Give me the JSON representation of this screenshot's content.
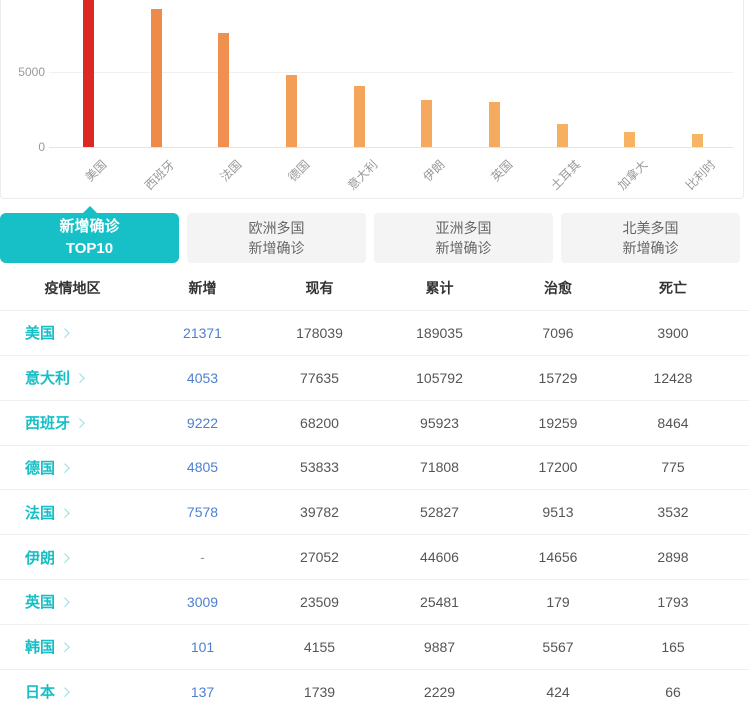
{
  "chart_data": {
    "type": "bar",
    "title": "",
    "xlabel": "",
    "ylabel": "",
    "categories": [
      "美国",
      "西班牙",
      "法国",
      "德国",
      "意大利",
      "伊朗",
      "英国",
      "土耳其",
      "加拿大",
      "比利时"
    ],
    "ids": [
      "usa",
      "spain",
      "france",
      "germany",
      "italy",
      "iran",
      "uk",
      "turkey",
      "canada",
      "belgium"
    ],
    "values": [
      21371,
      9222,
      7578,
      4805,
      4053,
      3100,
      3009,
      1550,
      1000,
      870
    ],
    "bar_colors": [
      "#dc2923",
      "#ee8a4a",
      "#ef9050",
      "#f29e57",
      "#f3a55b",
      "#f4a95e",
      "#f4ab5f",
      "#f5b062",
      "#f6b364",
      "#f6b465"
    ],
    "ytick_labels": [
      "5000",
      "0"
    ],
    "ytick_values": [
      5000,
      0
    ],
    "visible_ylim": [
      0,
      9800
    ],
    "grid": true,
    "legend_position": "none",
    "note": "tallest bar (美国) is clipped by the top edge of the viewport"
  },
  "tabs": [
    {
      "id": "top10",
      "label": "新增确诊\nTOP10",
      "active": true
    },
    {
      "id": "europe",
      "label": "欧洲多国\n新增确诊",
      "active": false
    },
    {
      "id": "asia",
      "label": "亚洲多国\n新增确诊",
      "active": false
    },
    {
      "id": "north-america",
      "label": "北美多国\n新增确诊",
      "active": false
    }
  ],
  "table": {
    "headers": [
      "疫情地区",
      "新增",
      "现有",
      "累计",
      "治愈",
      "死亡"
    ],
    "rows": [
      {
        "id": "usa",
        "region": "美国",
        "new": "21371",
        "current": "178039",
        "total": "189035",
        "cured": "7096",
        "dead": "3900"
      },
      {
        "id": "italy",
        "region": "意大利",
        "new": "4053",
        "current": "77635",
        "total": "105792",
        "cured": "15729",
        "dead": "12428"
      },
      {
        "id": "spain",
        "region": "西班牙",
        "new": "9222",
        "current": "68200",
        "total": "95923",
        "cured": "19259",
        "dead": "8464"
      },
      {
        "id": "germany",
        "region": "德国",
        "new": "4805",
        "current": "53833",
        "total": "71808",
        "cured": "17200",
        "dead": "775"
      },
      {
        "id": "france",
        "region": "法国",
        "new": "7578",
        "current": "39782",
        "total": "52827",
        "cured": "9513",
        "dead": "3532"
      },
      {
        "id": "iran",
        "region": "伊朗",
        "new": "-",
        "current": "27052",
        "total": "44606",
        "cured": "14656",
        "dead": "2898"
      },
      {
        "id": "uk",
        "region": "英国",
        "new": "3009",
        "current": "23509",
        "total": "25481",
        "cured": "179",
        "dead": "1793"
      },
      {
        "id": "south-korea",
        "region": "韩国",
        "new": "101",
        "current": "4155",
        "total": "9887",
        "cured": "5567",
        "dead": "165"
      },
      {
        "id": "japan",
        "region": "日本",
        "new": "137",
        "current": "1739",
        "total": "2229",
        "cured": "424",
        "dead": "66"
      }
    ]
  },
  "colors": {
    "accent_teal": "#17c0c6",
    "link_blue": "#4e7fd0",
    "bar_red": "#dc2923",
    "axis_gray": "#999999",
    "text_dark": "#555555"
  }
}
